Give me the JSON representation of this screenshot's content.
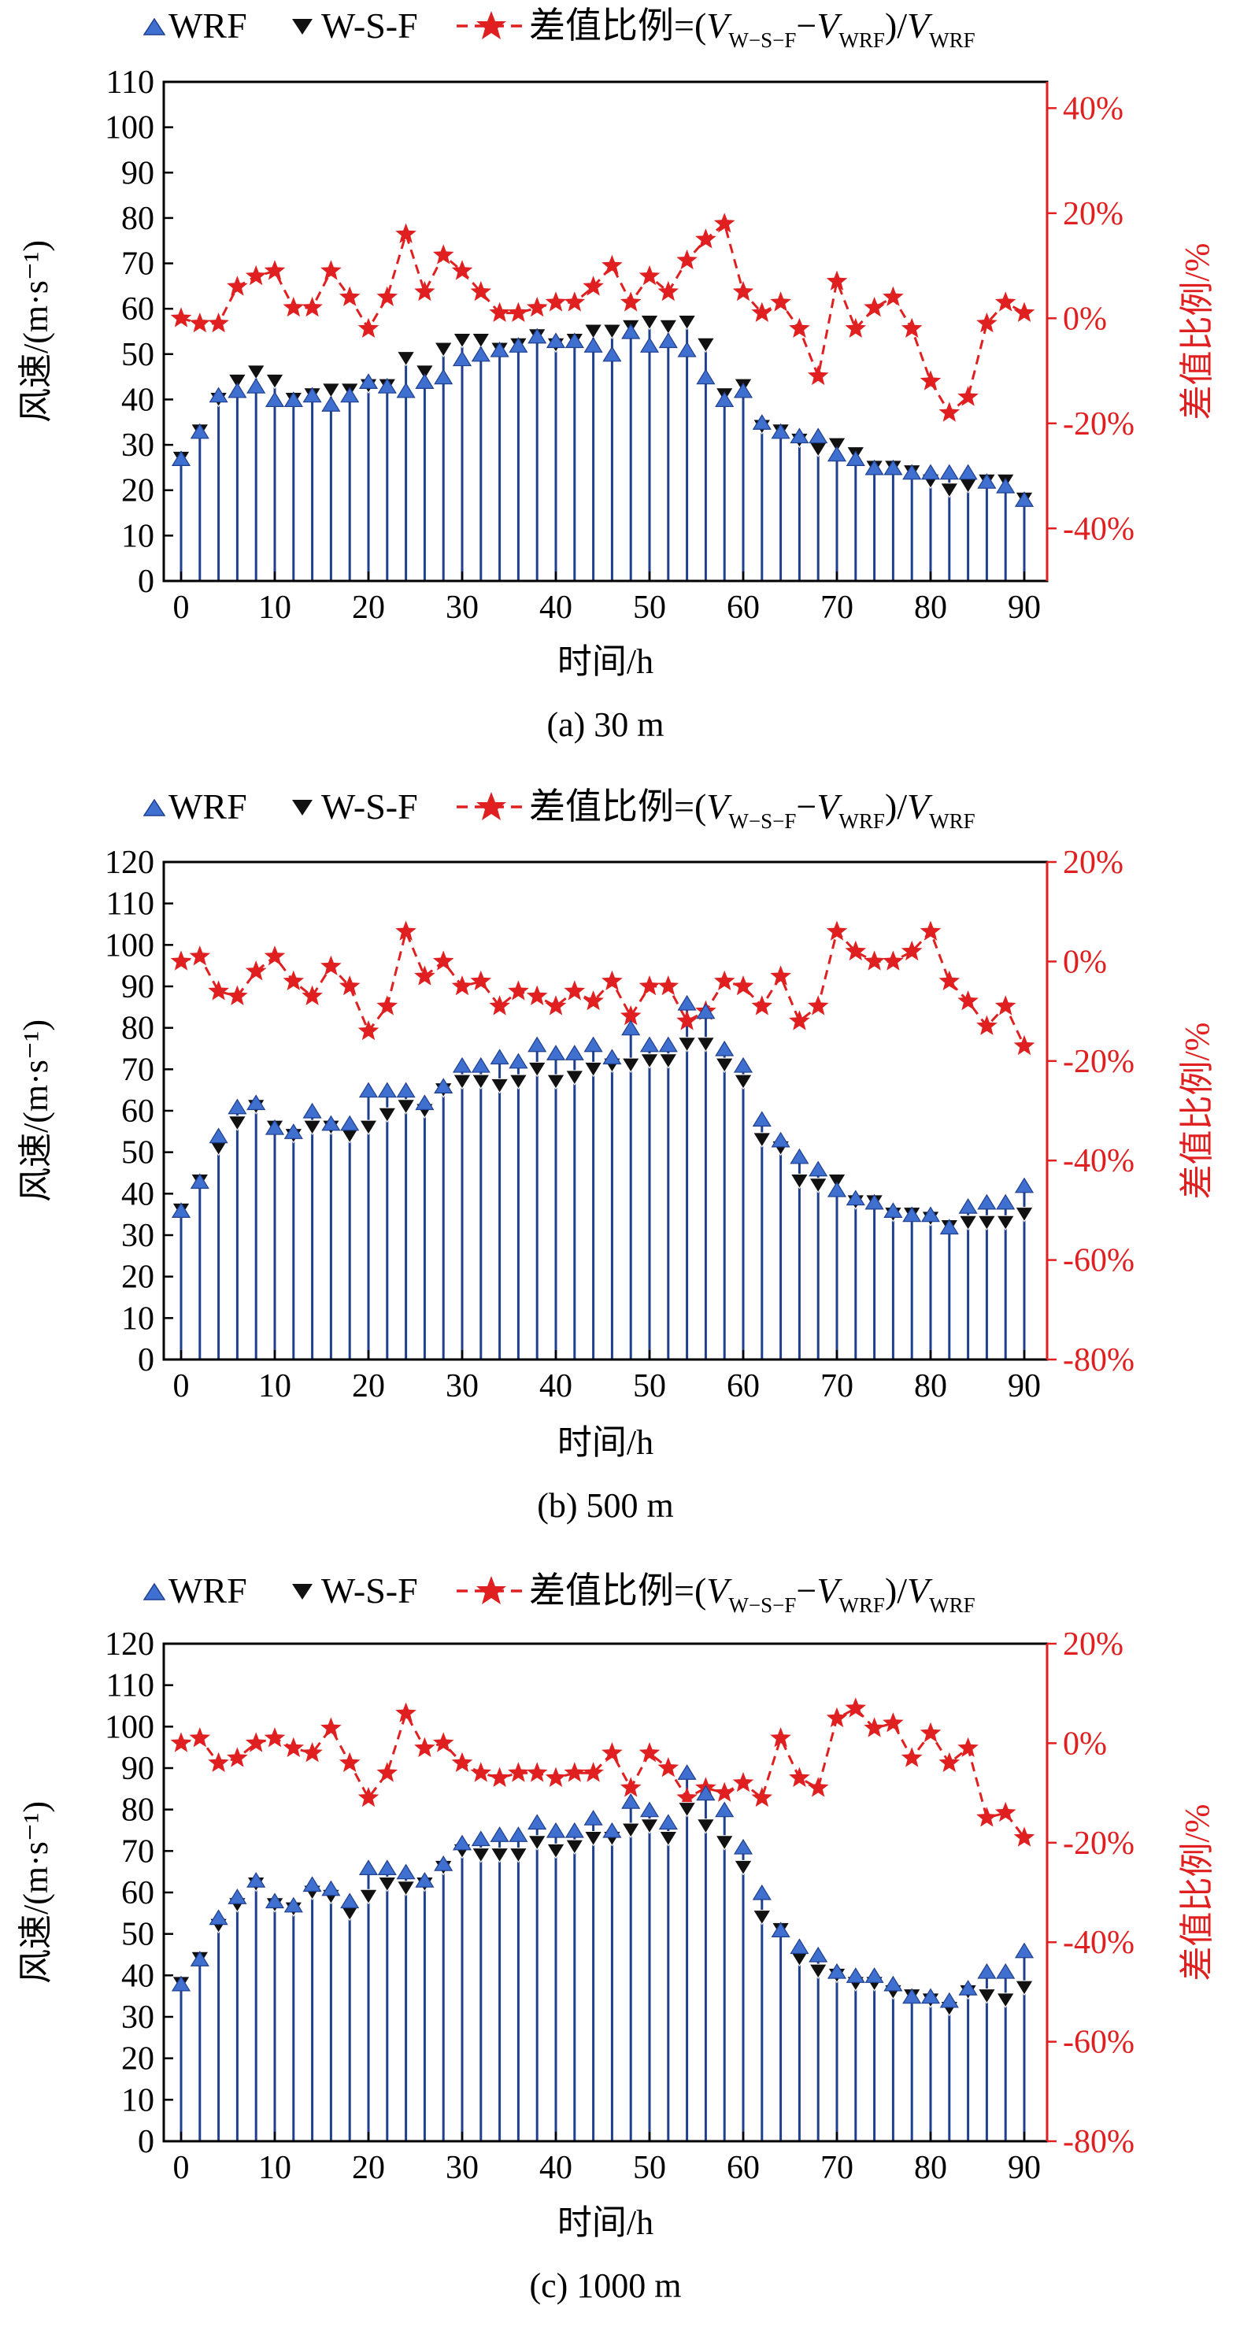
{
  "colors": {
    "wrf": "#3f6fcf",
    "wsf": "#111111",
    "ratio": "#e02020",
    "stem": "#1f3f8f",
    "axis": "#000000",
    "right_axis": "#e02020"
  },
  "legend": {
    "wrf": "WRF",
    "wsf": "W-S-F",
    "ratio_prefix": "差值比例=(",
    "v": "V",
    "sub_wsf": "W−S−F",
    "minus": "−",
    "sub_wrf": "WRF",
    "div": ")/"
  },
  "chart_data": [
    {
      "type": "line",
      "title": "(a) 30 m",
      "xlabel": "时间/h",
      "ylabel": "风速/(m·s⁻¹)",
      "y2label": "差值比例/%",
      "ylim": [
        0,
        110
      ],
      "y2lim": [
        -50,
        45
      ],
      "yticks": [
        "0",
        "10",
        "20",
        "30",
        "40",
        "50",
        "60",
        "70",
        "80",
        "90",
        "100",
        "110"
      ],
      "y2ticks": [
        "-40%",
        "-20%",
        "0%",
        "20%",
        "40%"
      ],
      "xticks": [
        "0",
        "10",
        "20",
        "30",
        "40",
        "50",
        "60",
        "70",
        "80",
        "90"
      ],
      "x": [
        0,
        2,
        4,
        6,
        8,
        10,
        12,
        14,
        16,
        18,
        20,
        22,
        24,
        26,
        28,
        30,
        32,
        34,
        36,
        38,
        40,
        42,
        44,
        46,
        48,
        50,
        52,
        54,
        56,
        58,
        60,
        62,
        64,
        66,
        68,
        70,
        72,
        74,
        76,
        78,
        80,
        82,
        84,
        86,
        88,
        90
      ],
      "series": [
        {
          "name": "WRF",
          "values": [
            27,
            33,
            41,
            42,
            43,
            40,
            40,
            41,
            39,
            41,
            44,
            43,
            42,
            44,
            45,
            49,
            50,
            51,
            52,
            54,
            53,
            53,
            52,
            50,
            55,
            52,
            53,
            51,
            45,
            40,
            42,
            35,
            33,
            32,
            32,
            28,
            27,
            25,
            25,
            24,
            24,
            24,
            24,
            22,
            21,
            18
          ]
        },
        {
          "name": "W-S-F",
          "values": [
            27,
            33,
            40,
            44,
            46,
            44,
            40,
            41,
            42,
            42,
            43,
            43,
            49,
            46,
            51,
            53,
            53,
            51,
            52,
            54,
            52,
            53,
            55,
            55,
            56,
            57,
            56,
            57,
            52,
            41,
            43,
            34,
            33,
            31,
            29,
            30,
            28,
            25,
            25,
            24,
            22,
            20,
            21,
            22,
            22,
            18
          ]
        },
        {
          "name": "差值比例",
          "values": [
            0,
            -1,
            -1,
            6,
            8,
            9,
            2,
            2,
            9,
            4,
            -2,
            4,
            16,
            5,
            12,
            9,
            5,
            1,
            1,
            2,
            3,
            3,
            6,
            10,
            3,
            8,
            5,
            11,
            15,
            18,
            5,
            1,
            3,
            -2,
            -11,
            7,
            -2,
            2,
            4,
            -2,
            -12,
            -18,
            -15,
            -1,
            3,
            1
          ]
        }
      ]
    },
    {
      "type": "line",
      "title": "(b) 500 m",
      "xlabel": "时间/h",
      "ylabel": "风速/(m·s⁻¹)",
      "y2label": "差值比例/%",
      "ylim": [
        0,
        120
      ],
      "y2lim": [
        -80,
        20
      ],
      "yticks": [
        "0",
        "10",
        "20",
        "30",
        "40",
        "50",
        "60",
        "70",
        "80",
        "90",
        "100",
        "110",
        "120"
      ],
      "y2ticks": [
        "-80%",
        "-60%",
        "-40%",
        "-20%",
        "0%",
        "20%"
      ],
      "xticks": [
        "0",
        "10",
        "20",
        "30",
        "40",
        "50",
        "60",
        "70",
        "80",
        "90"
      ],
      "x": [
        0,
        2,
        4,
        6,
        8,
        10,
        12,
        14,
        16,
        18,
        20,
        22,
        24,
        26,
        28,
        30,
        32,
        34,
        36,
        38,
        40,
        42,
        44,
        46,
        48,
        50,
        52,
        54,
        56,
        58,
        60,
        62,
        64,
        66,
        68,
        70,
        72,
        74,
        76,
        78,
        80,
        82,
        84,
        86,
        88,
        90
      ],
      "series": [
        {
          "name": "WRF",
          "values": [
            36,
            43,
            54,
            61,
            62,
            56,
            55,
            60,
            57,
            57,
            65,
            65,
            65,
            62,
            66,
            71,
            71,
            73,
            72,
            76,
            74,
            74,
            76,
            73,
            80,
            76,
            76,
            86,
            84,
            75,
            71,
            58,
            53,
            49,
            46,
            41,
            39,
            38,
            36,
            35,
            35,
            32,
            37,
            38,
            38,
            42
          ]
        },
        {
          "name": "W-S-F",
          "values": [
            36,
            43,
            51,
            57,
            61,
            56,
            54,
            56,
            56,
            54,
            56,
            59,
            61,
            60,
            65,
            67,
            67,
            66,
            67,
            70,
            67,
            68,
            70,
            71,
            71,
            72,
            72,
            76,
            76,
            71,
            67,
            53,
            51,
            43,
            42,
            43,
            38,
            38,
            35,
            35,
            34,
            32,
            33,
            33,
            33,
            35
          ]
        },
        {
          "name": "差值比例",
          "values": [
            0,
            1,
            -6,
            -7,
            -2,
            1,
            -4,
            -7,
            -1,
            -5,
            -14,
            -9,
            6,
            -3,
            0,
            -5,
            -4,
            -9,
            -6,
            -7,
            -9,
            -6,
            -8,
            -4,
            -11,
            -5,
            -5,
            -12,
            -10,
            -4,
            -5,
            -9,
            -3,
            -12,
            -9,
            6,
            2,
            0,
            0,
            2,
            6,
            -4,
            -8,
            -13,
            -9,
            -17
          ]
        }
      ]
    },
    {
      "type": "line",
      "title": "(c) 1000 m",
      "xlabel": "时间/h",
      "ylabel": "风速/(m·s⁻¹)",
      "y2label": "差值比例/%",
      "ylim": [
        0,
        120
      ],
      "y2lim": [
        -80,
        20
      ],
      "yticks": [
        "0",
        "10",
        "20",
        "30",
        "40",
        "50",
        "60",
        "70",
        "80",
        "90",
        "100",
        "110",
        "120"
      ],
      "y2ticks": [
        "-80%",
        "-60%",
        "-40%",
        "-20%",
        "0%",
        "20%"
      ],
      "xticks": [
        "0",
        "10",
        "20",
        "30",
        "40",
        "50",
        "60",
        "70",
        "80",
        "90"
      ],
      "x": [
        0,
        2,
        4,
        6,
        8,
        10,
        12,
        14,
        16,
        18,
        20,
        22,
        24,
        26,
        28,
        30,
        32,
        34,
        36,
        38,
        40,
        42,
        44,
        46,
        48,
        50,
        52,
        54,
        56,
        58,
        60,
        62,
        64,
        66,
        68,
        70,
        72,
        74,
        76,
        78,
        80,
        82,
        84,
        86,
        88,
        90
      ],
      "series": [
        {
          "name": "WRF",
          "values": [
            38,
            44,
            54,
            59,
            63,
            58,
            57,
            62,
            61,
            58,
            66,
            66,
            65,
            63,
            67,
            72,
            73,
            74,
            74,
            77,
            75,
            75,
            78,
            75,
            82,
            80,
            77,
            89,
            84,
            80,
            71,
            60,
            51,
            47,
            45,
            41,
            40,
            40,
            38,
            35,
            35,
            34,
            37,
            41,
            41,
            46
          ]
        },
        {
          "name": "W-S-F",
          "values": [
            38,
            44,
            52,
            57,
            62,
            57,
            56,
            60,
            59,
            55,
            59,
            62,
            61,
            62,
            66,
            70,
            69,
            69,
            69,
            72,
            70,
            71,
            73,
            73,
            75,
            76,
            73,
            80,
            76,
            72,
            66,
            54,
            51,
            44,
            41,
            40,
            38,
            38,
            36,
            35,
            34,
            32,
            36,
            35,
            34,
            37
          ]
        },
        {
          "name": "差值比例",
          "values": [
            0,
            1,
            -4,
            -3,
            0,
            1,
            -1,
            -2,
            3,
            -4,
            -11,
            -6,
            6,
            -1,
            0,
            -4,
            -6,
            -7,
            -6,
            -6,
            -7,
            -6,
            -6,
            -2,
            -9,
            -2,
            -5,
            -11,
            -9,
            -10,
            -8,
            -11,
            1,
            -7,
            -9,
            5,
            7,
            3,
            4,
            -3,
            2,
            -4,
            -1,
            -15,
            -14,
            -19
          ]
        }
      ]
    }
  ]
}
